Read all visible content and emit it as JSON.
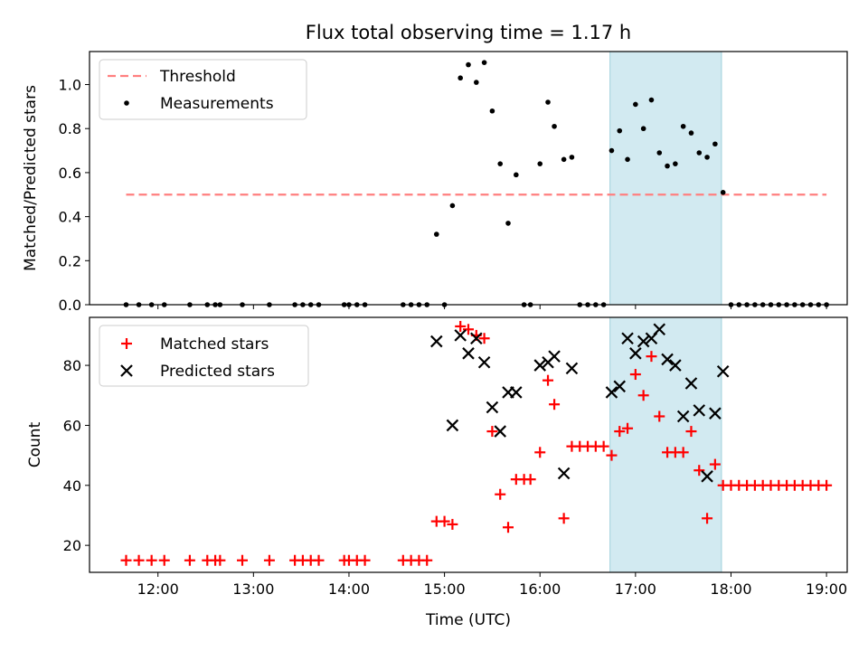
{
  "figure": {
    "title": "Flux total observing time = 1.17 h"
  },
  "colors": {
    "threshold": "#ff7f7f",
    "measurement": "#000000",
    "matched": "#ff0000",
    "predicted": "#000000",
    "shade_fill": "#add8e6",
    "shade_edge": "#9fd0dc"
  },
  "chart_data": [
    {
      "type": "scatter",
      "name": "ratio",
      "title": "Flux total observing time = 1.17 h",
      "xlabel": "",
      "ylabel": "Matched/Predicted stars",
      "xlim": [
        "11:17",
        "19:13"
      ],
      "ylim": [
        0,
        1.15
      ],
      "yticks": [
        0.0,
        0.2,
        0.4,
        0.6,
        0.8,
        1.0
      ],
      "ytick_labels": [
        "0.0",
        "0.2",
        "0.4",
        "0.6",
        "0.8",
        "1.0"
      ],
      "shaded_interval": [
        "16:44",
        "17:54"
      ],
      "legend": {
        "placement": "top-left",
        "entries": [
          "Threshold",
          "Measurements"
        ]
      },
      "threshold": {
        "name": "Threshold",
        "y": 0.5,
        "x_start": "11:40",
        "x_end": "19:00"
      },
      "series": [
        {
          "name": "Measurements",
          "marker": "dot",
          "points": [
            [
              "11:40",
              0.0
            ],
            [
              "11:48",
              0.0
            ],
            [
              "11:56",
              0.0
            ],
            [
              "12:04",
              0.0
            ],
            [
              "12:20",
              0.0
            ],
            [
              "12:31",
              0.0
            ],
            [
              "12:36",
              0.0
            ],
            [
              "12:39",
              0.0
            ],
            [
              "12:53",
              0.0
            ],
            [
              "13:10",
              0.0
            ],
            [
              "13:26",
              0.0
            ],
            [
              "13:31",
              0.0
            ],
            [
              "13:36",
              0.0
            ],
            [
              "13:41",
              0.0
            ],
            [
              "13:57",
              0.0
            ],
            [
              "14:00",
              0.0
            ],
            [
              "14:05",
              0.0
            ],
            [
              "14:10",
              0.0
            ],
            [
              "14:34",
              0.0
            ],
            [
              "14:39",
              0.0
            ],
            [
              "14:44",
              0.0
            ],
            [
              "14:49",
              0.0
            ],
            [
              "14:55",
              0.32
            ],
            [
              "15:00",
              0.0
            ],
            [
              "15:05",
              0.45
            ],
            [
              "15:10",
              1.03
            ],
            [
              "15:15",
              1.09
            ],
            [
              "15:20",
              1.01
            ],
            [
              "15:25",
              1.1
            ],
            [
              "15:30",
              0.88
            ],
            [
              "15:35",
              0.64
            ],
            [
              "15:40",
              0.37
            ],
            [
              "15:45",
              0.59
            ],
            [
              "15:50",
              0.0
            ],
            [
              "15:54",
              0.0
            ],
            [
              "16:00",
              0.64
            ],
            [
              "16:05",
              0.92
            ],
            [
              "16:09",
              0.81
            ],
            [
              "16:15",
              0.66
            ],
            [
              "16:20",
              0.67
            ],
            [
              "16:25",
              0.0
            ],
            [
              "16:30",
              0.0
            ],
            [
              "16:35",
              0.0
            ],
            [
              "16:40",
              0.0
            ],
            [
              "16:45",
              0.7
            ],
            [
              "16:50",
              0.79
            ],
            [
              "16:55",
              0.66
            ],
            [
              "17:00",
              0.91
            ],
            [
              "17:05",
              0.8
            ],
            [
              "17:10",
              0.93
            ],
            [
              "17:15",
              0.69
            ],
            [
              "17:20",
              0.63
            ],
            [
              "17:25",
              0.64
            ],
            [
              "17:30",
              0.81
            ],
            [
              "17:35",
              0.78
            ],
            [
              "17:40",
              0.69
            ],
            [
              "17:45",
              0.67
            ],
            [
              "17:50",
              0.73
            ],
            [
              "17:55",
              0.51
            ],
            [
              "18:00",
              0.0
            ],
            [
              "18:05",
              0.0
            ],
            [
              "18:10",
              0.0
            ],
            [
              "18:15",
              0.0
            ],
            [
              "18:20",
              0.0
            ],
            [
              "18:25",
              0.0
            ],
            [
              "18:30",
              0.0
            ],
            [
              "18:35",
              0.0
            ],
            [
              "18:40",
              0.0
            ],
            [
              "18:45",
              0.0
            ],
            [
              "18:50",
              0.0
            ],
            [
              "18:55",
              0.0
            ],
            [
              "19:00",
              0.0
            ]
          ]
        }
      ]
    },
    {
      "type": "scatter",
      "name": "counts",
      "title": "",
      "xlabel": "Time (UTC)",
      "ylabel": "Count",
      "xlim": [
        "11:17",
        "19:13"
      ],
      "ylim": [
        11,
        96
      ],
      "yticks": [
        20,
        40,
        60,
        80
      ],
      "ytick_labels": [
        "20",
        "40",
        "60",
        "80"
      ],
      "xticks": [
        "12:00",
        "13:00",
        "14:00",
        "15:00",
        "16:00",
        "17:00",
        "18:00",
        "19:00"
      ],
      "xtick_labels": [
        "12:00",
        "13:00",
        "14:00",
        "15:00",
        "16:00",
        "17:00",
        "18:00",
        "19:00"
      ],
      "shaded_interval": [
        "16:44",
        "17:54"
      ],
      "legend": {
        "placement": "top-left",
        "entries": [
          "Matched stars",
          "Predicted stars"
        ]
      },
      "series": [
        {
          "name": "Matched stars",
          "marker": "plus",
          "points": [
            [
              "11:40",
              15
            ],
            [
              "11:48",
              15
            ],
            [
              "11:56",
              15
            ],
            [
              "12:04",
              15
            ],
            [
              "12:20",
              15
            ],
            [
              "12:31",
              15
            ],
            [
              "12:36",
              15
            ],
            [
              "12:39",
              15
            ],
            [
              "12:53",
              15
            ],
            [
              "13:10",
              15
            ],
            [
              "13:26",
              15
            ],
            [
              "13:31",
              15
            ],
            [
              "13:36",
              15
            ],
            [
              "13:41",
              15
            ],
            [
              "13:57",
              15
            ],
            [
              "14:00",
              15
            ],
            [
              "14:05",
              15
            ],
            [
              "14:10",
              15
            ],
            [
              "14:34",
              15
            ],
            [
              "14:39",
              15
            ],
            [
              "14:44",
              15
            ],
            [
              "14:49",
              15
            ],
            [
              "14:55",
              28
            ],
            [
              "15:00",
              28
            ],
            [
              "15:05",
              27
            ],
            [
              "15:10",
              93
            ],
            [
              "15:15",
              92
            ],
            [
              "15:20",
              90
            ],
            [
              "15:25",
              89
            ],
            [
              "15:30",
              58
            ],
            [
              "15:35",
              37
            ],
            [
              "15:40",
              26
            ],
            [
              "15:45",
              42
            ],
            [
              "15:50",
              42
            ],
            [
              "15:54",
              42
            ],
            [
              "16:00",
              51
            ],
            [
              "16:05",
              75
            ],
            [
              "16:09",
              67
            ],
            [
              "16:15",
              29
            ],
            [
              "16:20",
              53
            ],
            [
              "16:25",
              53
            ],
            [
              "16:30",
              53
            ],
            [
              "16:35",
              53
            ],
            [
              "16:40",
              53
            ],
            [
              "16:45",
              50
            ],
            [
              "16:50",
              58
            ],
            [
              "16:55",
              59
            ],
            [
              "17:00",
              77
            ],
            [
              "17:05",
              70
            ],
            [
              "17:10",
              83
            ],
            [
              "17:15",
              63
            ],
            [
              "17:20",
              51
            ],
            [
              "17:25",
              51
            ],
            [
              "17:30",
              51
            ],
            [
              "17:35",
              58
            ],
            [
              "17:40",
              45
            ],
            [
              "17:45",
              29
            ],
            [
              "17:50",
              47
            ],
            [
              "17:55",
              40
            ],
            [
              "18:00",
              40
            ],
            [
              "18:05",
              40
            ],
            [
              "18:10",
              40
            ],
            [
              "18:15",
              40
            ],
            [
              "18:20",
              40
            ],
            [
              "18:25",
              40
            ],
            [
              "18:30",
              40
            ],
            [
              "18:35",
              40
            ],
            [
              "18:40",
              40
            ],
            [
              "18:45",
              40
            ],
            [
              "18:50",
              40
            ],
            [
              "18:55",
              40
            ],
            [
              "19:00",
              40
            ]
          ]
        },
        {
          "name": "Predicted stars",
          "marker": "x",
          "points": [
            [
              "14:55",
              88
            ],
            [
              "15:05",
              60
            ],
            [
              "15:10",
              90
            ],
            [
              "15:15",
              84
            ],
            [
              "15:20",
              89
            ],
            [
              "15:25",
              81
            ],
            [
              "15:30",
              66
            ],
            [
              "15:35",
              58
            ],
            [
              "15:40",
              71
            ],
            [
              "15:45",
              71
            ],
            [
              "16:00",
              80
            ],
            [
              "16:05",
              81
            ],
            [
              "16:09",
              83
            ],
            [
              "16:15",
              44
            ],
            [
              "16:20",
              79
            ],
            [
              "16:45",
              71
            ],
            [
              "16:50",
              73
            ],
            [
              "16:55",
              89
            ],
            [
              "17:00",
              84
            ],
            [
              "17:05",
              88
            ],
            [
              "17:10",
              89
            ],
            [
              "17:15",
              92
            ],
            [
              "17:20",
              82
            ],
            [
              "17:25",
              80
            ],
            [
              "17:30",
              63
            ],
            [
              "17:35",
              74
            ],
            [
              "17:40",
              65
            ],
            [
              "17:45",
              43
            ],
            [
              "17:50",
              64
            ],
            [
              "17:55",
              78
            ]
          ]
        }
      ]
    }
  ]
}
